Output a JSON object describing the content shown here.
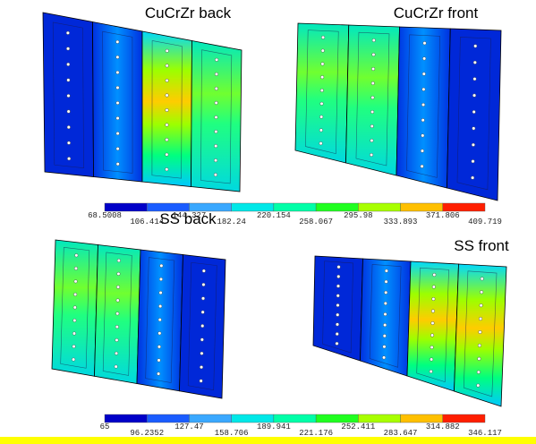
{
  "panels": [
    {
      "title": "CuCrZr back"
    },
    {
      "title": "CuCrZr front"
    },
    {
      "title": "SS back"
    },
    {
      "title": "SS front"
    }
  ],
  "colorbars": [
    {
      "labels": [
        "68.5008",
        "106.414",
        "144.327",
        "182.24",
        "220.154",
        "258.067",
        "295.98",
        "333.893",
        "371.806",
        "409.719"
      ]
    },
    {
      "labels": [
        "65",
        "96.2352",
        "127.47",
        "158.706",
        "189.941",
        "221.176",
        "252.411",
        "283.647",
        "314.882",
        "346.117"
      ]
    }
  ]
}
